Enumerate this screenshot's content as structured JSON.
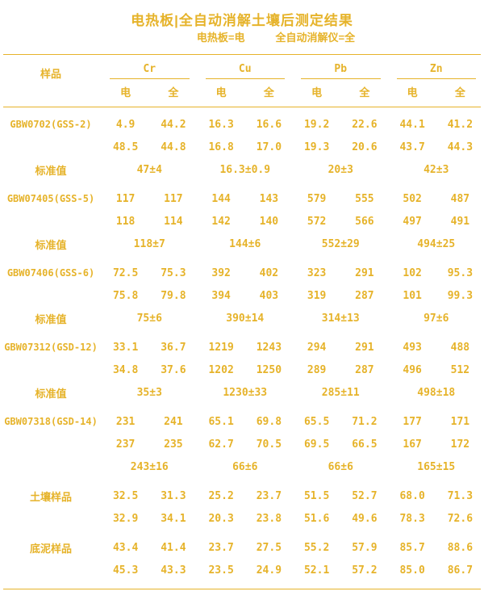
{
  "title": "电热板|全自动消解土壤后测定结果",
  "legend": {
    "left": "电热板=电",
    "right": "全自动消解仪=全"
  },
  "colors": {
    "accent": "#E6B32A",
    "background": "#FFFFFF"
  },
  "table": {
    "sample_header": "样品",
    "elements": [
      "Cr",
      "Cu",
      "Pb",
      "Zn"
    ],
    "sub_headers": [
      "电",
      "全"
    ],
    "sections": [
      {
        "sample": "GBW0702(GSS-2)",
        "rows": [
          [
            "4.9",
            "44.2",
            "16.3",
            "16.6",
            "19.2",
            "22.6",
            "44.1",
            "41.2"
          ],
          [
            "48.5",
            "44.8",
            "16.8",
            "17.0",
            "19.3",
            "20.6",
            "43.7",
            "44.3"
          ]
        ],
        "standard_label": "标准值",
        "standards": [
          "47±4",
          "16.3±0.9",
          "20±3",
          "42±3"
        ]
      },
      {
        "sample": "GBW07405(GSS-5)",
        "rows": [
          [
            "117",
            "117",
            "144",
            "143",
            "579",
            "555",
            "502",
            "487"
          ],
          [
            "118",
            "114",
            "142",
            "140",
            "572",
            "566",
            "497",
            "491"
          ]
        ],
        "standard_label": "标准值",
        "standards": [
          "118±7",
          "144±6",
          "552±29",
          "494±25"
        ]
      },
      {
        "sample": "GBW07406(GSS-6)",
        "rows": [
          [
            "72.5",
            "75.3",
            "392",
            "402",
            "323",
            "291",
            "102",
            "95.3"
          ],
          [
            "75.8",
            "79.8",
            "394",
            "403",
            "319",
            "287",
            "101",
            "99.3"
          ]
        ],
        "standard_label": "标准值",
        "standards": [
          "75±6",
          "390±14",
          "314±13",
          "97±6"
        ]
      },
      {
        "sample": "GBW07312(GSD-12)",
        "rows": [
          [
            "33.1",
            "36.7",
            "1219",
            "1243",
            "294",
            "291",
            "493",
            "488"
          ],
          [
            "34.8",
            "37.6",
            "1202",
            "1250",
            "289",
            "287",
            "496",
            "512"
          ]
        ],
        "standard_label": "标准值",
        "standards": [
          "35±3",
          "1230±33",
          "285±11",
          "498±18"
        ]
      },
      {
        "sample": "GBW07318(GSD-14)",
        "rows": [
          [
            "231",
            "241",
            "65.1",
            "69.8",
            "65.5",
            "71.2",
            "177",
            "171"
          ],
          [
            "237",
            "235",
            "62.7",
            "70.5",
            "69.5",
            "66.5",
            "167",
            "172"
          ]
        ],
        "standard_label": "",
        "standards": [
          "243±16",
          "66±6",
          "66±6",
          "165±15"
        ]
      },
      {
        "sample": "土壤样品",
        "sample_is_cjk": true,
        "rows": [
          [
            "32.5",
            "31.3",
            "25.2",
            "23.7",
            "51.5",
            "52.7",
            "68.0",
            "71.3"
          ],
          [
            "32.9",
            "34.1",
            "20.3",
            "23.8",
            "51.6",
            "49.6",
            "78.3",
            "72.6"
          ]
        ]
      },
      {
        "sample": "底泥样品",
        "sample_is_cjk": true,
        "rows": [
          [
            "43.4",
            "41.4",
            "23.7",
            "27.5",
            "55.2",
            "57.9",
            "85.7",
            "88.6"
          ],
          [
            "45.3",
            "43.3",
            "23.5",
            "24.9",
            "52.1",
            "57.2",
            "85.0",
            "86.7"
          ]
        ]
      }
    ]
  }
}
